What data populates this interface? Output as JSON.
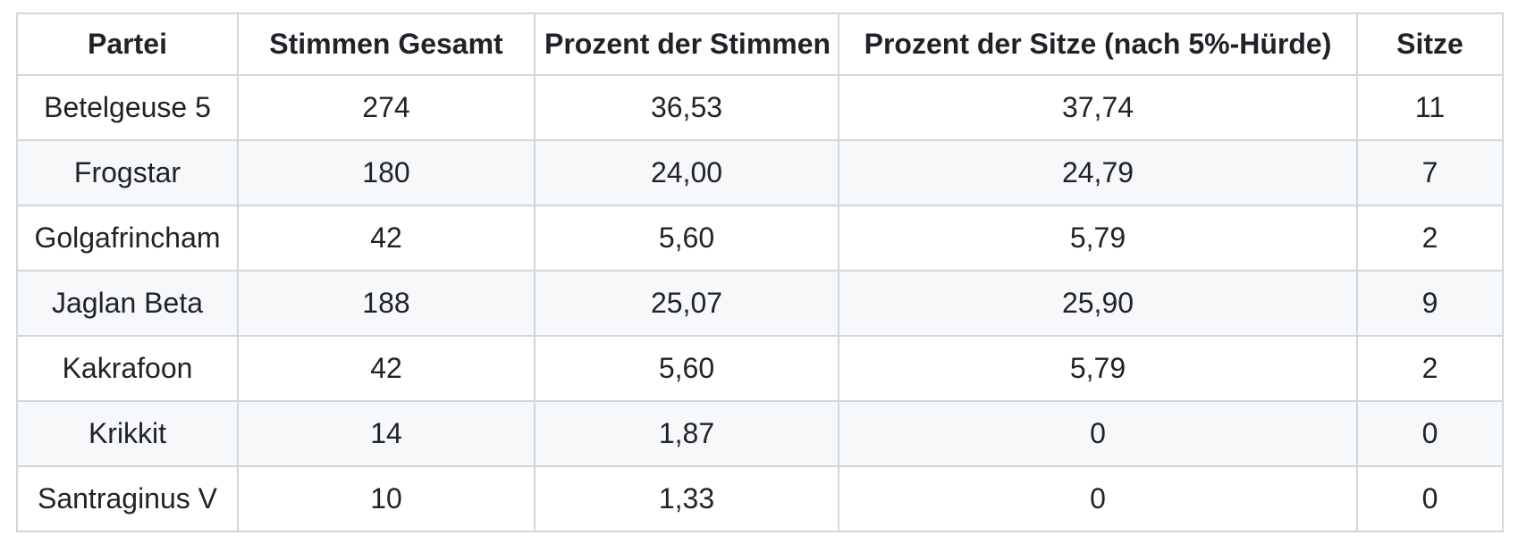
{
  "colors": {
    "text": "#1f2328",
    "border": "#d0d7de",
    "row_stripe": "#f6f8fa",
    "background": "#ffffff"
  },
  "chart_data": {
    "type": "table",
    "title": "",
    "categories": [
      "Betelgeuse 5",
      "Frogstar",
      "Golgafrincham",
      "Jaglan Beta",
      "Kakrafoon",
      "Krikkit",
      "Santraginus V"
    ],
    "series": [
      {
        "name": "Stimmen Gesamt",
        "values": [
          274,
          180,
          42,
          188,
          42,
          14,
          10
        ]
      },
      {
        "name": "Prozent der Stimmen",
        "values": [
          36.53,
          24.0,
          5.6,
          25.07,
          5.6,
          1.87,
          1.33
        ]
      },
      {
        "name": "Prozent der Sitze (nach 5%-Hürde)",
        "values": [
          37.74,
          24.79,
          5.79,
          25.9,
          5.79,
          0,
          0
        ]
      },
      {
        "name": "Sitze",
        "values": [
          11,
          7,
          2,
          9,
          2,
          0,
          0
        ]
      }
    ]
  },
  "table": {
    "columns": [
      "Partei",
      "Stimmen Gesamt",
      "Prozent der Stimmen",
      "Prozent der Sitze (nach 5%-Hürde)",
      "Sitze"
    ],
    "rows": [
      {
        "cells": [
          "Betelgeuse 5",
          "274",
          "36,53",
          "37,74",
          "11"
        ]
      },
      {
        "cells": [
          "Frogstar",
          "180",
          "24,00",
          "24,79",
          "7"
        ]
      },
      {
        "cells": [
          "Golgafrincham",
          "42",
          "5,60",
          "5,79",
          "2"
        ]
      },
      {
        "cells": [
          "Jaglan Beta",
          "188",
          "25,07",
          "25,90",
          "9"
        ]
      },
      {
        "cells": [
          "Kakrafoon",
          "42",
          "5,60",
          "5,79",
          "2"
        ]
      },
      {
        "cells": [
          "Krikkit",
          "14",
          "1,87",
          "0",
          "0"
        ]
      },
      {
        "cells": [
          "Santraginus V",
          "10",
          "1,33",
          "0",
          "0"
        ]
      }
    ]
  }
}
